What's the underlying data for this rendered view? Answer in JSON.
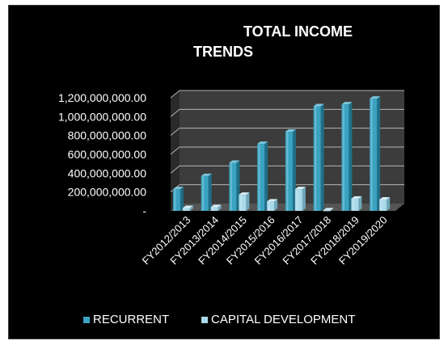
{
  "chart_data": {
    "type": "bar",
    "title_lines": [
      "TOTAL INCOME",
      "TRENDS"
    ],
    "categories": [
      "FY2012/2013",
      "FY2013/2014",
      "FY2014/2015",
      "FY2015/2016",
      "FY2016/2017",
      "FY2017/2018",
      "FY2018/2019",
      "FY2019/2020"
    ],
    "series": [
      {
        "name": "RECURRENT",
        "color": "#3aa3c2",
        "values": [
          230000000,
          370000000,
          510000000,
          710000000,
          840000000,
          1110000000,
          1130000000,
          1190000000
        ]
      },
      {
        "name": "CAPITAL DEVELOPMENT",
        "color": "#a9d9ea",
        "values": [
          30000000,
          40000000,
          170000000,
          100000000,
          230000000,
          5000000,
          130000000,
          120000000
        ]
      }
    ],
    "yticks": [
      "-",
      "200,000,000.00",
      "400,000,000.00",
      "600,000,000.00",
      "800,000,000.00",
      "1,000,000,000.00",
      "1,200,000,000.00"
    ],
    "ylim": [
      0,
      1200000000
    ],
    "grid": true,
    "legend_position": "bottom",
    "colors": {
      "background": "#000000",
      "plot_wall": "#3c3c3c",
      "grid": "#b5b5b5",
      "text": "#ffffff"
    }
  }
}
